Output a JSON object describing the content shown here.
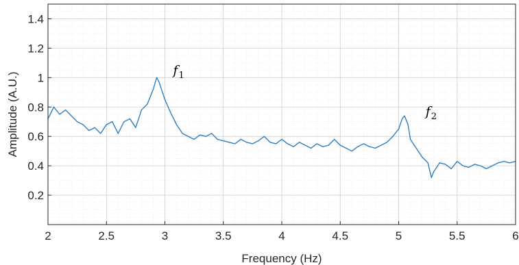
{
  "chart_data": {
    "type": "line",
    "xlabel": "Frequency (Hz)",
    "ylabel": "Amplitude (A.U.)",
    "xlim": [
      2,
      6
    ],
    "ylim": [
      0,
      1.5
    ],
    "x_ticks": [
      "2",
      "2.5",
      "3",
      "3.5",
      "4",
      "4.5",
      "5",
      "5.5",
      "6"
    ],
    "y_ticks": [
      "0.2",
      "0.4",
      "0.6",
      "0.8",
      "1",
      "1.2",
      "1.4"
    ],
    "grid": true,
    "minor_grid": true,
    "series_color": "#2e7fbf",
    "annotations": [
      {
        "label": "f",
        "subscript": "1",
        "x": 3.07,
        "y": 1.02
      },
      {
        "label": "f",
        "subscript": "2",
        "x": 5.23,
        "y": 0.74
      }
    ],
    "series": [
      {
        "x": [
          2.0,
          2.05,
          2.1,
          2.15,
          2.2,
          2.25,
          2.3,
          2.35,
          2.4,
          2.45,
          2.5,
          2.55,
          2.6,
          2.65,
          2.7,
          2.75,
          2.8,
          2.85,
          2.9,
          2.93,
          2.95,
          3.0,
          3.05,
          3.1,
          3.15,
          3.2,
          3.25,
          3.3,
          3.35,
          3.4,
          3.45,
          3.5,
          3.55,
          3.6,
          3.65,
          3.7,
          3.75,
          3.8,
          3.85,
          3.9,
          3.95,
          4.0,
          4.05,
          4.1,
          4.15,
          4.2,
          4.25,
          4.3,
          4.35,
          4.4,
          4.45,
          4.5,
          4.55,
          4.6,
          4.65,
          4.7,
          4.75,
          4.8,
          4.85,
          4.9,
          4.95,
          5.0,
          5.03,
          5.05,
          5.08,
          5.1,
          5.15,
          5.2,
          5.25,
          5.28,
          5.3,
          5.35,
          5.4,
          5.45,
          5.5,
          5.55,
          5.6,
          5.65,
          5.7,
          5.75,
          5.8,
          5.85,
          5.9,
          5.95,
          6.0
        ],
        "values": [
          0.72,
          0.8,
          0.75,
          0.78,
          0.74,
          0.7,
          0.68,
          0.64,
          0.66,
          0.62,
          0.68,
          0.7,
          0.62,
          0.7,
          0.72,
          0.66,
          0.78,
          0.82,
          0.92,
          1.0,
          0.97,
          0.85,
          0.76,
          0.68,
          0.62,
          0.6,
          0.58,
          0.61,
          0.6,
          0.62,
          0.58,
          0.57,
          0.56,
          0.55,
          0.58,
          0.56,
          0.55,
          0.57,
          0.6,
          0.56,
          0.55,
          0.58,
          0.55,
          0.53,
          0.56,
          0.54,
          0.52,
          0.55,
          0.53,
          0.54,
          0.58,
          0.54,
          0.52,
          0.5,
          0.53,
          0.55,
          0.53,
          0.52,
          0.54,
          0.56,
          0.6,
          0.65,
          0.72,
          0.74,
          0.68,
          0.58,
          0.52,
          0.46,
          0.42,
          0.32,
          0.36,
          0.42,
          0.41,
          0.38,
          0.43,
          0.4,
          0.39,
          0.41,
          0.4,
          0.38,
          0.4,
          0.42,
          0.43,
          0.42,
          0.43
        ]
      }
    ]
  }
}
